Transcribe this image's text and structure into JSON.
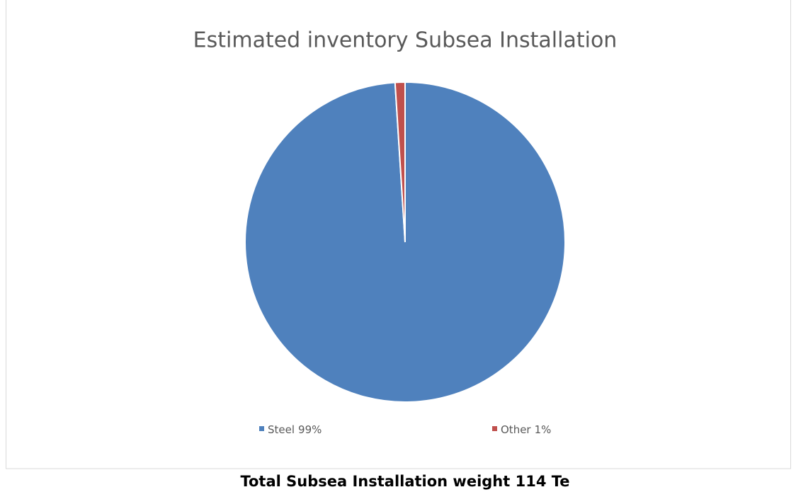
{
  "chart_data": {
    "type": "pie",
    "title": "Estimated inventory Subsea Installation",
    "categories": [
      "Steel",
      "Other"
    ],
    "values": [
      99,
      1
    ],
    "value_labels": [
      "99%",
      "1%"
    ],
    "colors": [
      "#4f81bd",
      "#c0504d"
    ],
    "legend": "bottom"
  },
  "caption": "Total Subsea Installation weight 114 Te"
}
